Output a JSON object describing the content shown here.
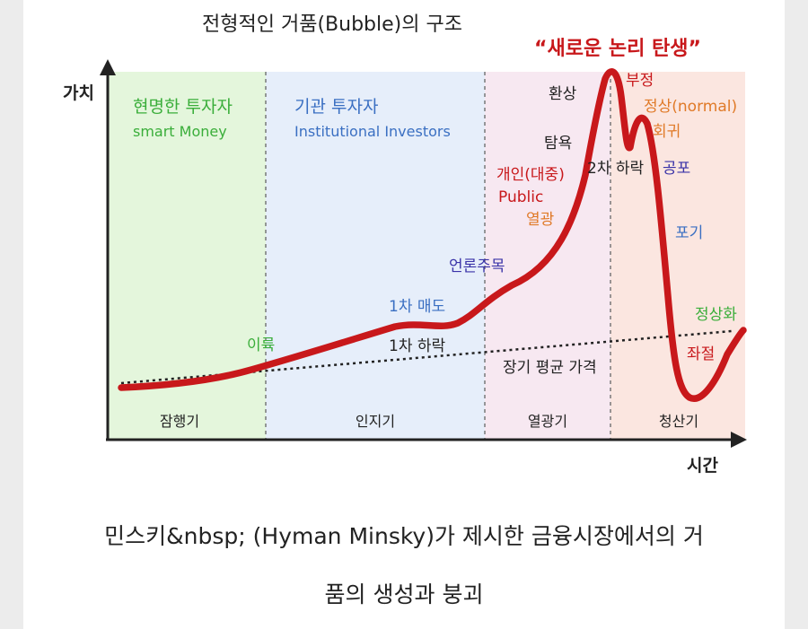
{
  "diagram": {
    "title": "전형적인 거품(Bubble)의 구조",
    "y_axis_label": "가치",
    "x_axis_label": "시간",
    "headline": "“새로운 논리 탄생”",
    "zones": [
      {
        "stage": "잠행기",
        "investor_ko": "현명한 투자자",
        "investor_en": "smart Money",
        "color": "#e4f6dc",
        "label_color": "#3aae3a"
      },
      {
        "stage": "인지기",
        "investor_ko": "기관 투자자",
        "investor_en": "Institutional Investors",
        "color": "#e6eefa",
        "label_color": "#3a6fc2"
      },
      {
        "stage": "열광기",
        "investor_ko": "",
        "investor_en": "",
        "color": "#f7e8f1",
        "label_color": "#333333"
      },
      {
        "stage": "청산기",
        "investor_ko": "",
        "investor_en": "",
        "color": "#fbe6e0",
        "label_color": "#333333"
      }
    ],
    "annotations": {
      "profit_taking": "이륙",
      "first_sell": "1차 매도",
      "first_drop": "1차 하락",
      "media": "언론주목",
      "long_term_avg": "장기 평균 가격",
      "public_ko": "개인(대중)",
      "public_en": "Public",
      "enthusiasm": "열광",
      "greed": "탐욕",
      "delusion": "환상",
      "denial": "부정",
      "back_to_normal": "정상(normal)",
      "return": "회귀",
      "second_drop": "2차 하락",
      "fear": "공포",
      "capitulation": "포기",
      "despair": "좌절",
      "normalization": "정상화"
    },
    "colors": {
      "curve": "#c8181b",
      "headline": "#c8181b",
      "axis": "#222222"
    }
  },
  "caption": {
    "line1": "민스키&nbsp; (Hyman Minsky)가 제시한 금융시장에서의 거",
    "line2": "품의 생성과 붕괴"
  }
}
